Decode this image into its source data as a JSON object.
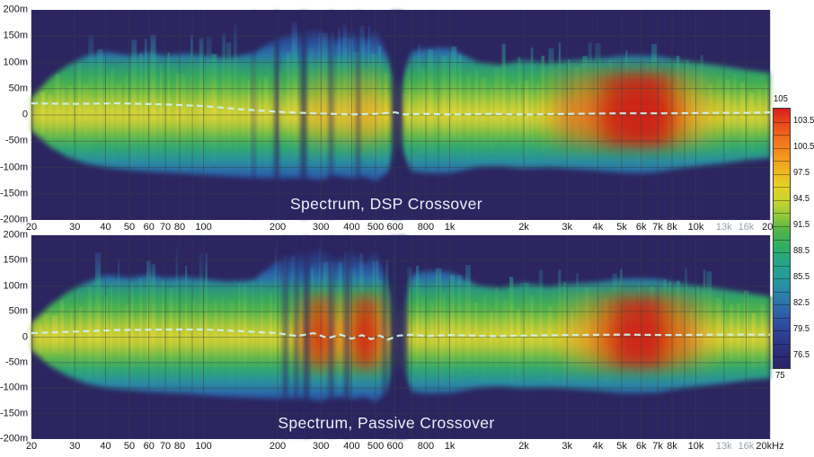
{
  "chart_data": {
    "type": "heatmap",
    "kind": "spectrogram-pair",
    "background_navy": "#2c2560",
    "centerline_color": "#cdeeee",
    "x_axis": {
      "scale": "log",
      "min_hz": 20,
      "max_hz": 20000,
      "ticks": [
        {
          "f": 20,
          "label": "20"
        },
        {
          "f": 30,
          "label": "30"
        },
        {
          "f": 40,
          "label": "40"
        },
        {
          "f": 50,
          "label": "50"
        },
        {
          "f": 60,
          "label": "60"
        },
        {
          "f": 70,
          "label": "70"
        },
        {
          "f": 80,
          "label": "80"
        },
        {
          "f": 100,
          "label": "100"
        },
        {
          "f": 200,
          "label": "200"
        },
        {
          "f": 300,
          "label": "300"
        },
        {
          "f": 400,
          "label": "400"
        },
        {
          "f": 500,
          "label": "500"
        },
        {
          "f": 600,
          "label": "600"
        },
        {
          "f": 800,
          "label": "800"
        },
        {
          "f": 1000,
          "label": "1k"
        },
        {
          "f": 2000,
          "label": "2k"
        },
        {
          "f": 3000,
          "label": "3k"
        },
        {
          "f": 4000,
          "label": "4k"
        },
        {
          "f": 5000,
          "label": "5k"
        },
        {
          "f": 6000,
          "label": "6k"
        },
        {
          "f": 7000,
          "label": "7k"
        },
        {
          "f": 8000,
          "label": "8k"
        },
        {
          "f": 10000,
          "label": "10k"
        },
        {
          "f": 13000,
          "label": "13k",
          "muted": true
        },
        {
          "f": 16000,
          "label": "16k",
          "muted": true
        },
        {
          "f": 20000,
          "label": "20k"
        }
      ],
      "bottom_last_label": "20kHz",
      "grid_freqs": [
        20,
        30,
        40,
        50,
        60,
        70,
        80,
        90,
        100,
        200,
        300,
        400,
        500,
        600,
        700,
        800,
        900,
        1000,
        2000,
        3000,
        4000,
        5000,
        6000,
        7000,
        8000,
        9000,
        10000,
        13000,
        16000,
        20000
      ]
    },
    "y_axis": {
      "min": -200,
      "max": 200,
      "grid_step": 50,
      "ticks": [
        {
          "m": 200,
          "label": "200m"
        },
        {
          "m": 150,
          "label": "150m"
        },
        {
          "m": 100,
          "label": "100m"
        },
        {
          "m": 50,
          "label": "50m"
        },
        {
          "m": 0,
          "label": "0"
        },
        {
          "m": -50,
          "label": "-50m"
        },
        {
          "m": -100,
          "label": "-100m"
        },
        {
          "m": -150,
          "label": "-150m"
        },
        {
          "m": -200,
          "label": "-200m"
        }
      ]
    },
    "colorbar": {
      "min": 75,
      "max": 105,
      "segment_step": 1.5,
      "labels": [
        {
          "v": 105,
          "label": "105",
          "pos": "top"
        },
        {
          "v": 103.5,
          "label": "103.5"
        },
        {
          "v": 100.5,
          "label": "100.5"
        },
        {
          "v": 97.5,
          "label": "97.5"
        },
        {
          "v": 94.5,
          "label": "94.5"
        },
        {
          "v": 91.5,
          "label": "91.5"
        },
        {
          "v": 88.5,
          "label": "88.5"
        },
        {
          "v": 85.5,
          "label": "85.5"
        },
        {
          "v": 82.5,
          "label": "82.5"
        },
        {
          "v": 79.5,
          "label": "79.5"
        },
        {
          "v": 76.5,
          "label": "76.5"
        },
        {
          "v": 75,
          "label": "75",
          "pos": "bottom"
        }
      ],
      "colors_top_to_bottom": [
        "#d81e1c",
        "#e84a1c",
        "#f0711c",
        "#f4911e",
        "#f0b220",
        "#e6cf25",
        "#c8d42e",
        "#96c93a",
        "#52b447",
        "#2fae62",
        "#27a684",
        "#249c9d",
        "#2b86a8",
        "#2f6aab",
        "#2e50a2",
        "#2c3c8e",
        "#2b2d78",
        "#2a2464"
      ]
    },
    "charts": [
      {
        "title": "Spectrum, DSP Crossover",
        "seed": 11,
        "envelope": [
          [
            20,
            32,
            -30
          ],
          [
            24,
            72,
            -62
          ],
          [
            28,
            94,
            -80
          ],
          [
            33,
            112,
            -92
          ],
          [
            40,
            120,
            -100
          ],
          [
            50,
            113,
            -105
          ],
          [
            60,
            119,
            -108
          ],
          [
            70,
            113,
            -110
          ],
          [
            85,
            117,
            -112
          ],
          [
            100,
            113,
            -114
          ],
          [
            125,
            108,
            -117
          ],
          [
            160,
            118,
            -120
          ],
          [
            200,
            146,
            -121
          ],
          [
            250,
            157,
            -120
          ],
          [
            300,
            162,
            -124
          ],
          [
            340,
            141,
            -115
          ],
          [
            400,
            159,
            -121
          ],
          [
            450,
            141,
            -117
          ],
          [
            500,
            161,
            -127
          ],
          [
            560,
            110,
            -110
          ],
          [
            620,
            52,
            -56
          ],
          [
            700,
            120,
            -107
          ],
          [
            800,
            126,
            -111
          ],
          [
            1000,
            128,
            -111
          ],
          [
            1300,
            100,
            -99
          ],
          [
            1600,
            95,
            -98
          ],
          [
            2000,
            104,
            -102
          ],
          [
            2500,
            98,
            -100
          ],
          [
            3000,
            103,
            -102
          ],
          [
            4000,
            107,
            -106
          ],
          [
            5000,
            112,
            -110
          ],
          [
            6000,
            113,
            -111
          ],
          [
            7000,
            112,
            -109
          ],
          [
            8000,
            107,
            -104
          ],
          [
            10000,
            100,
            -98
          ],
          [
            13000,
            93,
            -92
          ],
          [
            16000,
            86,
            -86
          ],
          [
            20000,
            80,
            -82
          ]
        ],
        "spike_zones": [
          [
            34,
            140,
            172
          ],
          [
            190,
            560,
            182
          ],
          [
            660,
            1150,
            150
          ],
          [
            1500,
            11500,
            138
          ]
        ],
        "centerline": [
          [
            20,
            22
          ],
          [
            30,
            21
          ],
          [
            45,
            22
          ],
          [
            70,
            20
          ],
          [
            100,
            17
          ],
          [
            140,
            11
          ],
          [
            200,
            6
          ],
          [
            280,
            3
          ],
          [
            400,
            1
          ],
          [
            500,
            2
          ],
          [
            600,
            5
          ],
          [
            650,
            1
          ],
          [
            800,
            2
          ],
          [
            1000,
            1
          ],
          [
            1500,
            2
          ],
          [
            2000,
            1
          ],
          [
            3000,
            2
          ],
          [
            5000,
            3
          ],
          [
            8000,
            3
          ],
          [
            12000,
            4
          ],
          [
            16000,
            4
          ],
          [
            20000,
            5
          ]
        ],
        "heat": [
          [
            240,
            0
          ],
          [
            300,
            0.28
          ],
          [
            360,
            0.14
          ],
          [
            420,
            0.3
          ],
          [
            480,
            0.34
          ],
          [
            540,
            0.12
          ],
          [
            610,
            0
          ],
          [
            2300,
            0
          ],
          [
            3000,
            0.35
          ],
          [
            3800,
            0.5
          ],
          [
            4500,
            0.78
          ],
          [
            5200,
            0.9
          ],
          [
            6000,
            0.95
          ],
          [
            6800,
            0.92
          ],
          [
            7500,
            0.78
          ],
          [
            8500,
            0.52
          ],
          [
            10000,
            0.32
          ],
          [
            11500,
            0.14
          ],
          [
            13500,
            0
          ]
        ],
        "gaps": [
          [
            160,
            4,
            0.4
          ],
          [
            198,
            6,
            0.6
          ],
          [
            255,
            7,
            0.65
          ],
          [
            330,
            5,
            0.5
          ],
          [
            425,
            5,
            0.5
          ],
          [
            612,
            13,
            0.85
          ]
        ]
      },
      {
        "title": "Spectrum, Passive Crossover",
        "seed": 23,
        "envelope": [
          [
            20,
            28,
            -26
          ],
          [
            24,
            64,
            -58
          ],
          [
            28,
            88,
            -76
          ],
          [
            33,
            106,
            -90
          ],
          [
            40,
            122,
            -100
          ],
          [
            50,
            116,
            -104
          ],
          [
            60,
            122,
            -107
          ],
          [
            70,
            116,
            -109
          ],
          [
            85,
            118,
            -111
          ],
          [
            100,
            114,
            -114
          ],
          [
            125,
            109,
            -117
          ],
          [
            160,
            112,
            -119
          ],
          [
            200,
            150,
            -121
          ],
          [
            250,
            166,
            -120
          ],
          [
            300,
            176,
            -125
          ],
          [
            350,
            148,
            -117
          ],
          [
            400,
            172,
            -122
          ],
          [
            450,
            143,
            -117
          ],
          [
            500,
            170,
            -127
          ],
          [
            550,
            118,
            -111
          ],
          [
            620,
            46,
            -50
          ],
          [
            700,
            122,
            -107
          ],
          [
            800,
            130,
            -111
          ],
          [
            1000,
            128,
            -110
          ],
          [
            1300,
            102,
            -99
          ],
          [
            1600,
            96,
            -97
          ],
          [
            2000,
            106,
            -101
          ],
          [
            2500,
            99,
            -99
          ],
          [
            3000,
            104,
            -101
          ],
          [
            4000,
            108,
            -105
          ],
          [
            5000,
            114,
            -110
          ],
          [
            6000,
            115,
            -110
          ],
          [
            7000,
            114,
            -109
          ],
          [
            8000,
            108,
            -103
          ],
          [
            10000,
            101,
            -97
          ],
          [
            13000,
            94,
            -91
          ],
          [
            16000,
            87,
            -85
          ],
          [
            20000,
            80,
            -81
          ]
        ],
        "spike_zones": [
          [
            32,
            150,
            190
          ],
          [
            190,
            600,
            190
          ],
          [
            660,
            1200,
            152
          ],
          [
            1500,
            11500,
            136
          ]
        ],
        "centerline": [
          [
            20,
            8
          ],
          [
            30,
            11
          ],
          [
            45,
            14
          ],
          [
            70,
            15
          ],
          [
            100,
            15
          ],
          [
            140,
            12
          ],
          [
            200,
            8
          ],
          [
            240,
            2
          ],
          [
            280,
            8
          ],
          [
            320,
            -2
          ],
          [
            360,
            5
          ],
          [
            400,
            -3
          ],
          [
            440,
            4
          ],
          [
            480,
            -4
          ],
          [
            520,
            3
          ],
          [
            560,
            -5
          ],
          [
            620,
            3
          ],
          [
            700,
            5
          ],
          [
            800,
            2
          ],
          [
            1000,
            4
          ],
          [
            1500,
            2
          ],
          [
            2000,
            3
          ],
          [
            3000,
            4
          ],
          [
            5000,
            5
          ],
          [
            8000,
            4
          ],
          [
            12000,
            5
          ],
          [
            16000,
            5
          ],
          [
            20000,
            5
          ]
        ],
        "heat": [
          [
            225,
            0
          ],
          [
            265,
            0.5
          ],
          [
            295,
            0.85
          ],
          [
            330,
            0.5
          ],
          [
            370,
            0.3
          ],
          [
            420,
            0.72
          ],
          [
            470,
            0.85
          ],
          [
            520,
            0.55
          ],
          [
            560,
            0.22
          ],
          [
            610,
            0
          ],
          [
            2600,
            0
          ],
          [
            3400,
            0.32
          ],
          [
            4200,
            0.55
          ],
          [
            5000,
            0.82
          ],
          [
            6000,
            0.9
          ],
          [
            7000,
            0.85
          ],
          [
            8000,
            0.58
          ],
          [
            9500,
            0.38
          ],
          [
            11000,
            0.18
          ],
          [
            13000,
            0
          ]
        ],
        "gaps": [
          [
            215,
            6,
            0.55
          ],
          [
            238,
            5,
            0.5
          ],
          [
            262,
            7,
            0.6
          ],
          [
            330,
            6,
            0.5
          ],
          [
            382,
            6,
            0.55
          ],
          [
            545,
            6,
            0.5
          ],
          [
            612,
            16,
            0.9
          ],
          [
            655,
            8,
            0.6
          ]
        ]
      }
    ]
  }
}
